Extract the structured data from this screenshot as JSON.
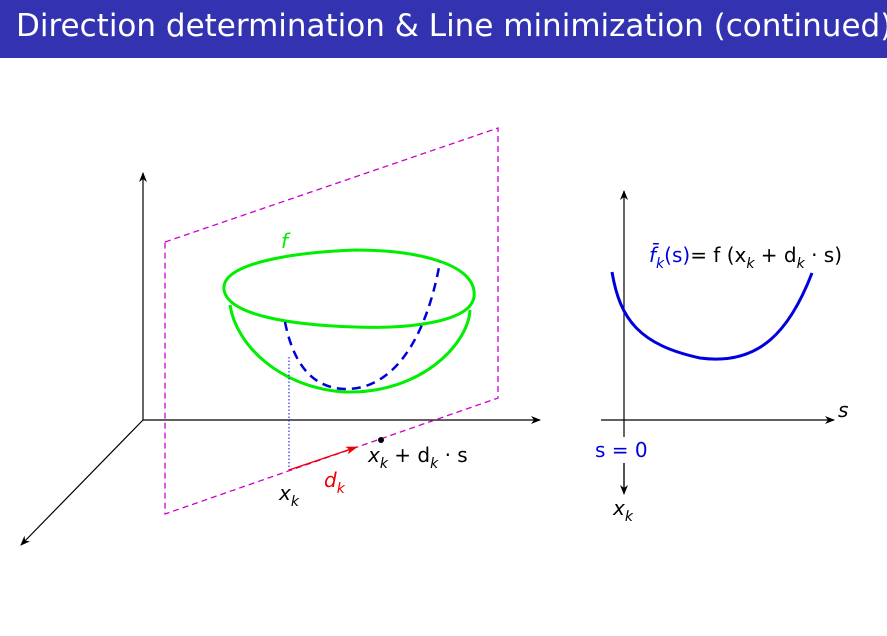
{
  "title": "Direction determination & Line minimization (continued)",
  "colors": {
    "title_bg": "#3333b2",
    "surface": "#00ee00",
    "plane": "#cc00cc",
    "curve": "#0000dd",
    "direction": "#ee0000",
    "axes": "#000000"
  },
  "left_diagram": {
    "surface_label": "f",
    "point_label": "x",
    "point_subscript": "k",
    "direction_label": "d",
    "direction_subscript": "k",
    "target_label": "x",
    "target_subscript": "k",
    "target_rest": " + d",
    "target_rest_subscript": "k",
    "target_tail": " · s"
  },
  "right_diagram": {
    "fbar": "f̄",
    "fbar_sub": "k",
    "fbar_arg": "(s)",
    "eq_rest": "= f (x",
    "eq_sub": "k",
    "eq_tail1": " + d",
    "eq_sub2": "k",
    "eq_tail2": " · s)",
    "s_axis_label": "s",
    "origin_label": "s = 0",
    "origin_point_label": "x",
    "origin_point_subscript": "k"
  }
}
